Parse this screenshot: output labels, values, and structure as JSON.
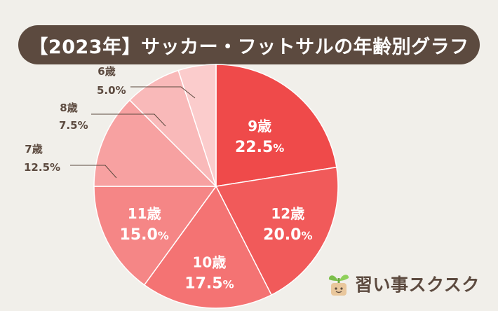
{
  "title": "【2023年】サッカー・フットサルの年齢別グラフ",
  "logo_text": "習い事スクスク",
  "colors": {
    "background": "#f1efea",
    "title_bar": "#5c4a3f",
    "label_text": "#5c4a3f"
  },
  "chart_data": {
    "type": "pie",
    "title": "【2023年】サッカー・フットサルの年齢別グラフ",
    "start": "12 o'clock, clockwise",
    "unit": "%",
    "slices": [
      {
        "label": "9歳",
        "value": 22.5,
        "value_text": "22.5",
        "color": "#ef4a4a",
        "label_position": "inside"
      },
      {
        "label": "12歳",
        "value": 20.0,
        "value_text": "20.0",
        "color": "#f15a5a",
        "label_position": "inside"
      },
      {
        "label": "10歳",
        "value": 17.5,
        "value_text": "17.5",
        "color": "#f47373",
        "label_position": "inside"
      },
      {
        "label": "11歳",
        "value": 15.0,
        "value_text": "15.0",
        "color": "#f58686",
        "label_position": "inside"
      },
      {
        "label": "7歳",
        "value": 12.5,
        "value_text": "12.5",
        "color": "#f7a1a1",
        "label_position": "outside"
      },
      {
        "label": "8歳",
        "value": 7.5,
        "value_text": "7.5",
        "color": "#f9b9b9",
        "label_position": "outside"
      },
      {
        "label": "6歳",
        "value": 5.0,
        "value_text": "5.0",
        "color": "#fbcccc",
        "label_position": "outside"
      }
    ]
  }
}
